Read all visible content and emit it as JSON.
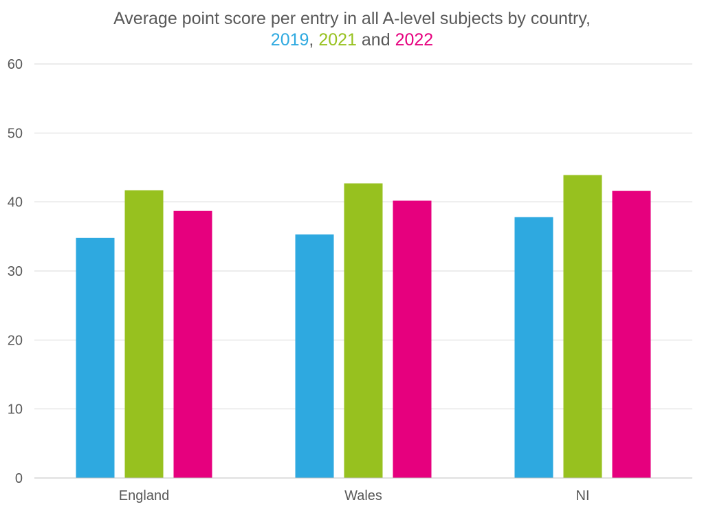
{
  "chart_data": {
    "type": "bar",
    "title_line1": "Average point score per entry in all A-level subjects by country,",
    "title_line2": {
      "y2019": "2019",
      "sep1": ", ",
      "y2021": "2021",
      "sep2": " and ",
      "y2022": "2022"
    },
    "categories": [
      "England",
      "Wales",
      "NI"
    ],
    "series": [
      {
        "name": "2019",
        "color": "#2EA9E0",
        "values": [
          34.8,
          35.3,
          37.8
        ]
      },
      {
        "name": "2021",
        "color": "#97C11F",
        "values": [
          41.7,
          42.7,
          43.9
        ]
      },
      {
        "name": "2022",
        "color": "#E6007E",
        "values": [
          38.7,
          40.2,
          41.6
        ]
      }
    ],
    "ylim": [
      0,
      60
    ],
    "yticks": [
      0,
      10,
      20,
      30,
      40,
      50,
      60
    ],
    "grid": true,
    "gridColor": "#d9d9d9",
    "xlabel": "",
    "ylabel": ""
  }
}
